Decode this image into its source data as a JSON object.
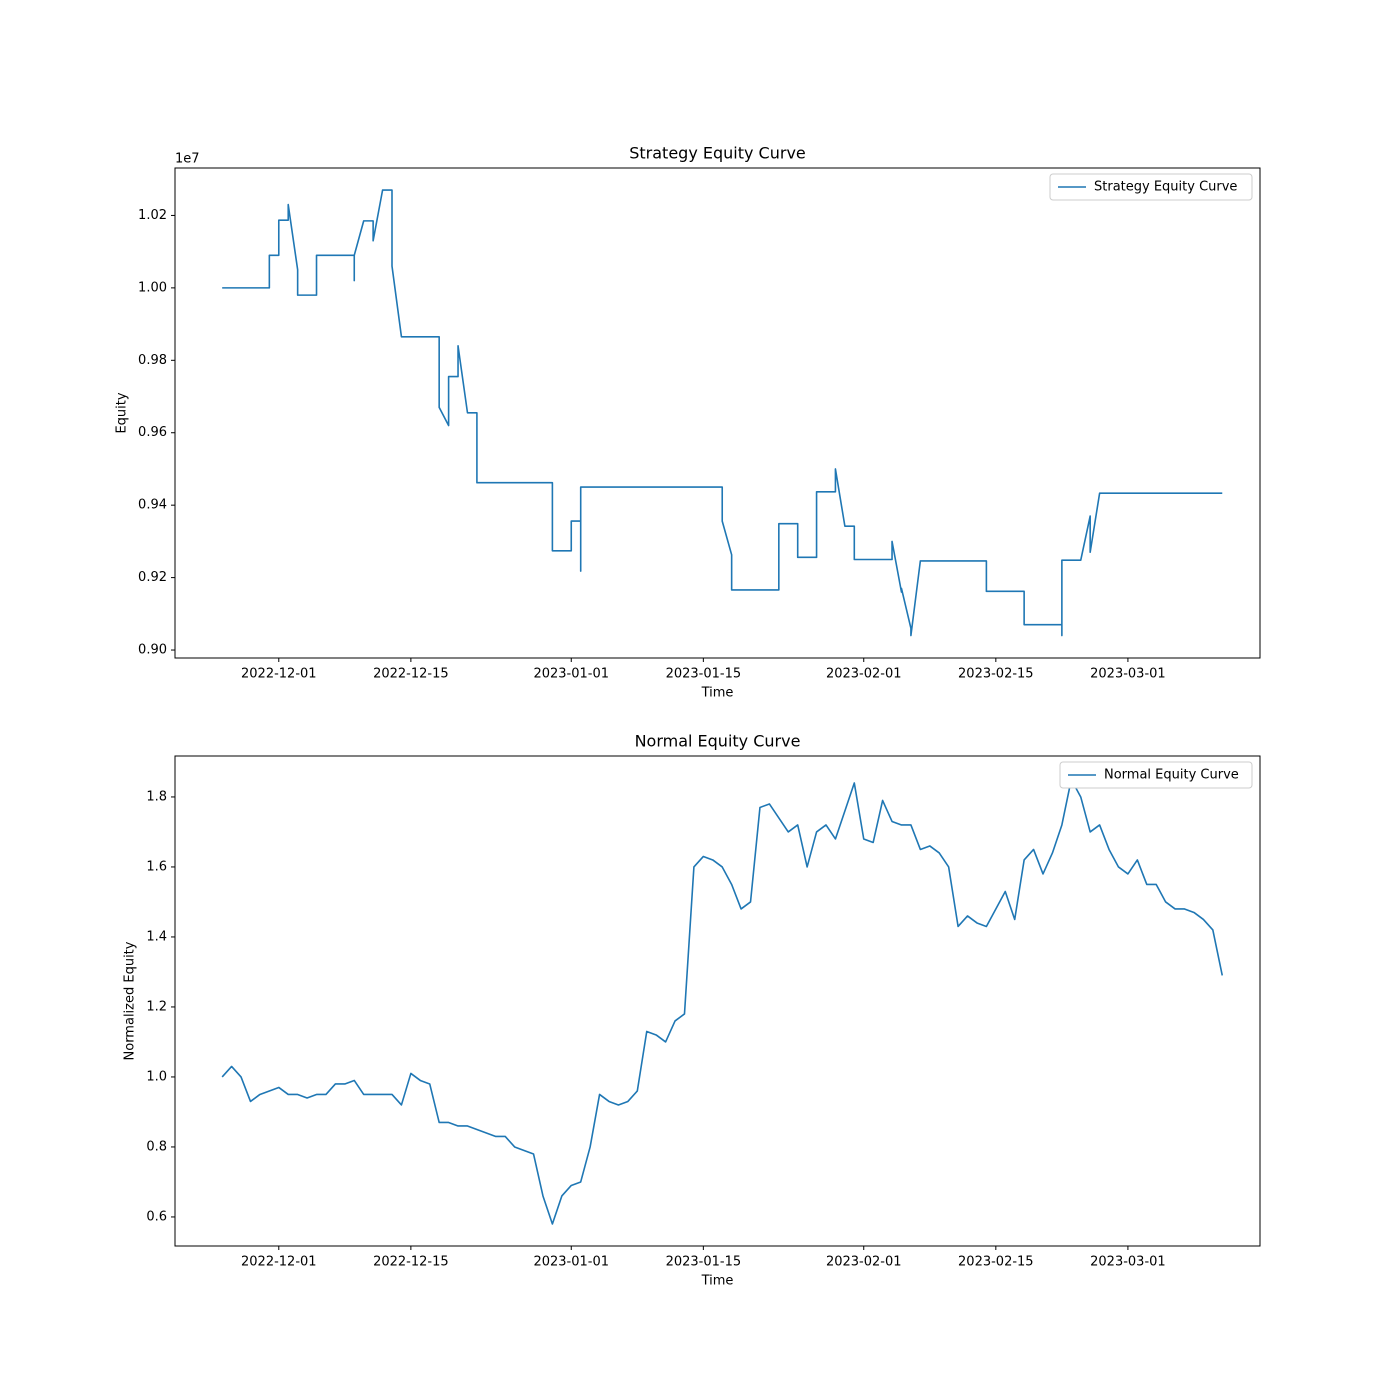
{
  "chart_data": [
    {
      "type": "line",
      "title": "Strategy Equity Curve",
      "x_label": "Time",
      "y_label": "Equity",
      "offset_label": "1e7",
      "xlim": [
        "2022-11-20",
        "2023-03-15"
      ],
      "ylim": [
        0.8978,
        1.0331
      ],
      "xticks": [
        "2022-12-01",
        "2022-12-15",
        "2023-01-01",
        "2023-01-15",
        "2023-02-01",
        "2023-02-15",
        "2023-03-01"
      ],
      "yticks": [
        {
          "value": 0.9,
          "label": "0.90"
        },
        0.92,
        0.94,
        0.96,
        0.98,
        {
          "value": 1.0,
          "label": "1.00"
        },
        1.02
      ],
      "legend": "upper right",
      "grid": false,
      "x": [
        "2022-11-25",
        "2022-11-30",
        "2022-11-30",
        "2022-12-01",
        "2022-12-01",
        "2022-12-02",
        "2022-12-02",
        "2022-12-03",
        "2022-12-03",
        "2022-12-05",
        "2022-12-05",
        "2022-12-09",
        "2022-12-09",
        "2022-12-09",
        "2022-12-10",
        "2022-12-11",
        "2022-12-11",
        "2022-12-12",
        "2022-12-13",
        "2022-12-13",
        "2022-12-14",
        "2022-12-18",
        "2022-12-18",
        "2022-12-19",
        "2022-12-19",
        "2022-12-20",
        "2022-12-20",
        "2022-12-21",
        "2022-12-22",
        "2022-12-22",
        "2022-12-22",
        "2022-12-30",
        "2022-12-30",
        "2023-01-01",
        "2023-01-01",
        "2023-01-02",
        "2023-01-02",
        "2023-01-02",
        "2023-01-17",
        "2023-01-17",
        "2023-01-18",
        "2023-01-18",
        "2023-01-23",
        "2023-01-23",
        "2023-01-25",
        "2023-01-25",
        "2023-01-27",
        "2023-01-27",
        "2023-01-29",
        "2023-01-29",
        "2023-01-30",
        "2023-01-31",
        "2023-01-31",
        "2023-02-04",
        "2023-02-04",
        "2023-02-05",
        "2023-02-05",
        "2023-02-06",
        "2023-02-06",
        "2023-02-07",
        "2023-02-14",
        "2023-02-14",
        "2023-02-18",
        "2023-02-18",
        "2023-02-22",
        "2023-02-22",
        "2023-02-22",
        "2023-02-24",
        "2023-02-25",
        "2023-02-25",
        "2023-02-26",
        "2023-03-11"
      ],
      "series": [
        {
          "name": "Strategy Equity Curve",
          "color": "#1f77b4",
          "values": [
            1.0,
            1.0,
            1.009,
            1.009,
            1.0187,
            1.0187,
            1.023,
            1.005,
            0.998,
            0.998,
            1.009,
            1.009,
            1.002,
            1.009,
            1.0185,
            1.0185,
            1.013,
            1.027,
            1.027,
            1.006,
            0.9865,
            0.9865,
            0.967,
            0.962,
            0.9755,
            0.9755,
            0.984,
            0.9655,
            0.9655,
            0.96,
            0.9462,
            0.9462,
            0.9274,
            0.9274,
            0.9356,
            0.9356,
            0.9218,
            0.945,
            0.945,
            0.9356,
            0.9263,
            0.9166,
            0.9166,
            0.9349,
            0.9349,
            0.9256,
            0.9256,
            0.9437,
            0.9437,
            0.95,
            0.9342,
            0.9342,
            0.925,
            0.925,
            0.93,
            0.916,
            0.917,
            0.906,
            0.904,
            0.9246,
            0.9246,
            0.9162,
            0.9162,
            0.907,
            0.907,
            0.904,
            0.9248,
            0.9248,
            0.937,
            0.927,
            0.9433,
            0.9433
          ]
        }
      ]
    },
    {
      "type": "line",
      "title": "Normal Equity Curve",
      "x_label": "Time",
      "y_label": "Normalized Equity",
      "xlim": [
        "2022-11-20",
        "2023-03-15"
      ],
      "ylim": [
        0.517,
        1.917
      ],
      "xticks": [
        "2022-12-01",
        "2022-12-15",
        "2023-01-01",
        "2023-01-15",
        "2023-02-01",
        "2023-02-15",
        "2023-03-01"
      ],
      "yticks": [
        0.6,
        0.8,
        {
          "value": 1.0,
          "label": "1.0"
        },
        1.2,
        1.4,
        1.6,
        1.8
      ],
      "legend": "upper right",
      "grid": false,
      "x": [
        "2022-11-25",
        "2022-11-26",
        "2022-11-27",
        "2022-11-28",
        "2022-11-29",
        "2022-11-30",
        "2022-12-01",
        "2022-12-02",
        "2022-12-03",
        "2022-12-04",
        "2022-12-05",
        "2022-12-06",
        "2022-12-07",
        "2022-12-08",
        "2022-12-09",
        "2022-12-10",
        "2022-12-11",
        "2022-12-12",
        "2022-12-13",
        "2022-12-14",
        "2022-12-15",
        "2022-12-16",
        "2022-12-17",
        "2022-12-18",
        "2022-12-19",
        "2022-12-20",
        "2022-12-21",
        "2022-12-22",
        "2022-12-23",
        "2022-12-24",
        "2022-12-25",
        "2022-12-26",
        "2022-12-27",
        "2022-12-28",
        "2022-12-29",
        "2022-12-30",
        "2022-12-31",
        "2023-01-01",
        "2023-01-02",
        "2023-01-03",
        "2023-01-04",
        "2023-01-05",
        "2023-01-06",
        "2023-01-07",
        "2023-01-08",
        "2023-01-09",
        "2023-01-10",
        "2023-01-11",
        "2023-01-12",
        "2023-01-13",
        "2023-01-14",
        "2023-01-15",
        "2023-01-16",
        "2023-01-17",
        "2023-01-18",
        "2023-01-19",
        "2023-01-20",
        "2023-01-21",
        "2023-01-22",
        "2023-01-23",
        "2023-01-24",
        "2023-01-25",
        "2023-01-26",
        "2023-01-27",
        "2023-01-28",
        "2023-01-29",
        "2023-01-30",
        "2023-01-31",
        "2023-02-01",
        "2023-02-02",
        "2023-02-03",
        "2023-02-04",
        "2023-02-05",
        "2023-02-06",
        "2023-02-07",
        "2023-02-08",
        "2023-02-09",
        "2023-02-10",
        "2023-02-11",
        "2023-02-12",
        "2023-02-13",
        "2023-02-14",
        "2023-02-15",
        "2023-02-16",
        "2023-02-17",
        "2023-02-18",
        "2023-02-19",
        "2023-02-20",
        "2023-02-21",
        "2023-02-22",
        "2023-02-23",
        "2023-02-24",
        "2023-02-25",
        "2023-02-26",
        "2023-02-27",
        "2023-02-28",
        "2023-03-01",
        "2023-03-02",
        "2023-03-03",
        "2023-03-04",
        "2023-03-05",
        "2023-03-06",
        "2023-03-07",
        "2023-03-08",
        "2023-03-09",
        "2023-03-10",
        "2023-03-11"
      ],
      "series": [
        {
          "name": "Normal Equity Curve",
          "color": "#1f77b4",
          "values": [
            1.0,
            1.03,
            1.0,
            0.93,
            0.95,
            0.96,
            0.97,
            0.95,
            0.95,
            0.94,
            0.95,
            0.95,
            0.98,
            0.98,
            0.99,
            0.95,
            0.95,
            0.95,
            0.95,
            0.92,
            1.01,
            0.99,
            0.98,
            0.87,
            0.87,
            0.86,
            0.86,
            0.85,
            0.84,
            0.83,
            0.83,
            0.8,
            0.79,
            0.78,
            0.66,
            0.58,
            0.66,
            0.69,
            0.7,
            0.8,
            0.95,
            0.93,
            0.92,
            0.93,
            0.96,
            1.13,
            1.12,
            1.1,
            1.16,
            1.18,
            1.6,
            1.63,
            1.62,
            1.6,
            1.55,
            1.48,
            1.5,
            1.77,
            1.78,
            1.74,
            1.7,
            1.72,
            1.6,
            1.7,
            1.72,
            1.68,
            1.76,
            1.84,
            1.68,
            1.67,
            1.79,
            1.73,
            1.72,
            1.72,
            1.65,
            1.66,
            1.64,
            1.6,
            1.43,
            1.46,
            1.44,
            1.43,
            1.48,
            1.53,
            1.45,
            1.62,
            1.65,
            1.58,
            1.64,
            1.72,
            1.85,
            1.8,
            1.7,
            1.72,
            1.65,
            1.6,
            1.58,
            1.62,
            1.55,
            1.55,
            1.5,
            1.48,
            1.48,
            1.47,
            1.45,
            1.42,
            1.29
          ]
        }
      ]
    }
  ]
}
